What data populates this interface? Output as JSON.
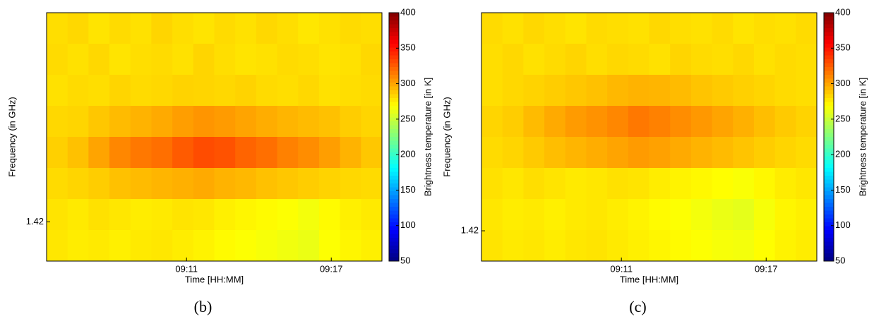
{
  "chart_data": [
    {
      "type": "heatmap",
      "caption": "(b)",
      "xlabel": "Time [HH:MM]",
      "ylabel": "Frequency (in GHz)",
      "colorbar_label": "Brightness temperature [in K]",
      "colormap": "jet",
      "xlim": [
        545.2,
        559.1
      ],
      "xticks": [
        {
          "value": 551,
          "label": "09:11"
        },
        {
          "value": 557,
          "label": "09:17"
        }
      ],
      "ylim": [
        1.4197,
        1.4216
      ],
      "yticks": [
        1.42
      ],
      "clim": [
        50,
        400
      ],
      "cticks": [
        50,
        100,
        150,
        200,
        250,
        300,
        350,
        400
      ],
      "z": [
        [
          280,
          282,
          278,
          281,
          279,
          283,
          280,
          278,
          281,
          279,
          282,
          280,
          277,
          279,
          281,
          280
        ],
        [
          281,
          279,
          282,
          278,
          280,
          281,
          279,
          283,
          280,
          278,
          279,
          281,
          280,
          278,
          279,
          282
        ],
        [
          279,
          281,
          280,
          283,
          281,
          282,
          284,
          283,
          282,
          284,
          281,
          280,
          282,
          279,
          280,
          281
        ],
        [
          282,
          283,
          288,
          292,
          295,
          298,
          302,
          305,
          303,
          300,
          297,
          294,
          292,
          290,
          286,
          283
        ],
        [
          285,
          290,
          300,
          310,
          315,
          318,
          325,
          330,
          328,
          322,
          318,
          312,
          308,
          302,
          295,
          288
        ],
        [
          281,
          283,
          286,
          290,
          292,
          294,
          296,
          298,
          295,
          293,
          290,
          288,
          286,
          284,
          282,
          281
        ],
        [
          278,
          276,
          279,
          277,
          275,
          276,
          278,
          277,
          274,
          272,
          270,
          268,
          265,
          270,
          274,
          276
        ],
        [
          277,
          275,
          276,
          274,
          276,
          277,
          275,
          273,
          270,
          268,
          266,
          264,
          262,
          268,
          272,
          274
        ]
      ]
    },
    {
      "type": "heatmap",
      "caption": "(c)",
      "xlabel": "Time [HH:MM]",
      "ylabel": "Frequency (in GHz)",
      "colorbar_label": "Brightness temperature [in K]",
      "colormap": "jet",
      "xlim": [
        545.2,
        559.1
      ],
      "xticks": [
        {
          "value": 551,
          "label": "09:11"
        },
        {
          "value": 557,
          "label": "09:17"
        }
      ],
      "ylim": [
        1.41975,
        1.4218
      ],
      "yticks": [
        1.42
      ],
      "clim": [
        50,
        400
      ],
      "cticks": [
        50,
        100,
        150,
        200,
        250,
        300,
        350,
        400
      ],
      "z": [
        [
          281,
          279,
          282,
          280,
          278,
          281,
          280,
          279,
          282,
          280,
          279,
          281,
          278,
          280,
          279,
          281
        ],
        [
          280,
          282,
          279,
          281,
          283,
          280,
          282,
          281,
          279,
          283,
          281,
          280,
          282,
          279,
          281,
          280
        ],
        [
          280,
          282,
          284,
          286,
          288,
          290,
          293,
          295,
          294,
          292,
          289,
          287,
          285,
          283,
          281,
          280
        ],
        [
          283,
          286,
          292,
          298,
          303,
          306,
          310,
          315,
          312,
          308,
          304,
          300,
          296,
          291,
          287,
          284
        ],
        [
          281,
          283,
          287,
          291,
          294,
          297,
          300,
          303,
          301,
          298,
          295,
          292,
          289,
          286,
          283,
          281
        ],
        [
          279,
          277,
          280,
          278,
          276,
          277,
          279,
          278,
          275,
          273,
          271,
          269,
          267,
          271,
          275,
          277
        ],
        [
          277,
          275,
          276,
          274,
          276,
          277,
          275,
          273,
          270,
          268,
          265,
          262,
          260,
          266,
          272,
          274
        ],
        [
          278,
          276,
          277,
          275,
          277,
          278,
          276,
          274,
          272,
          270,
          268,
          266,
          265,
          269,
          273,
          275
        ]
      ]
    }
  ]
}
